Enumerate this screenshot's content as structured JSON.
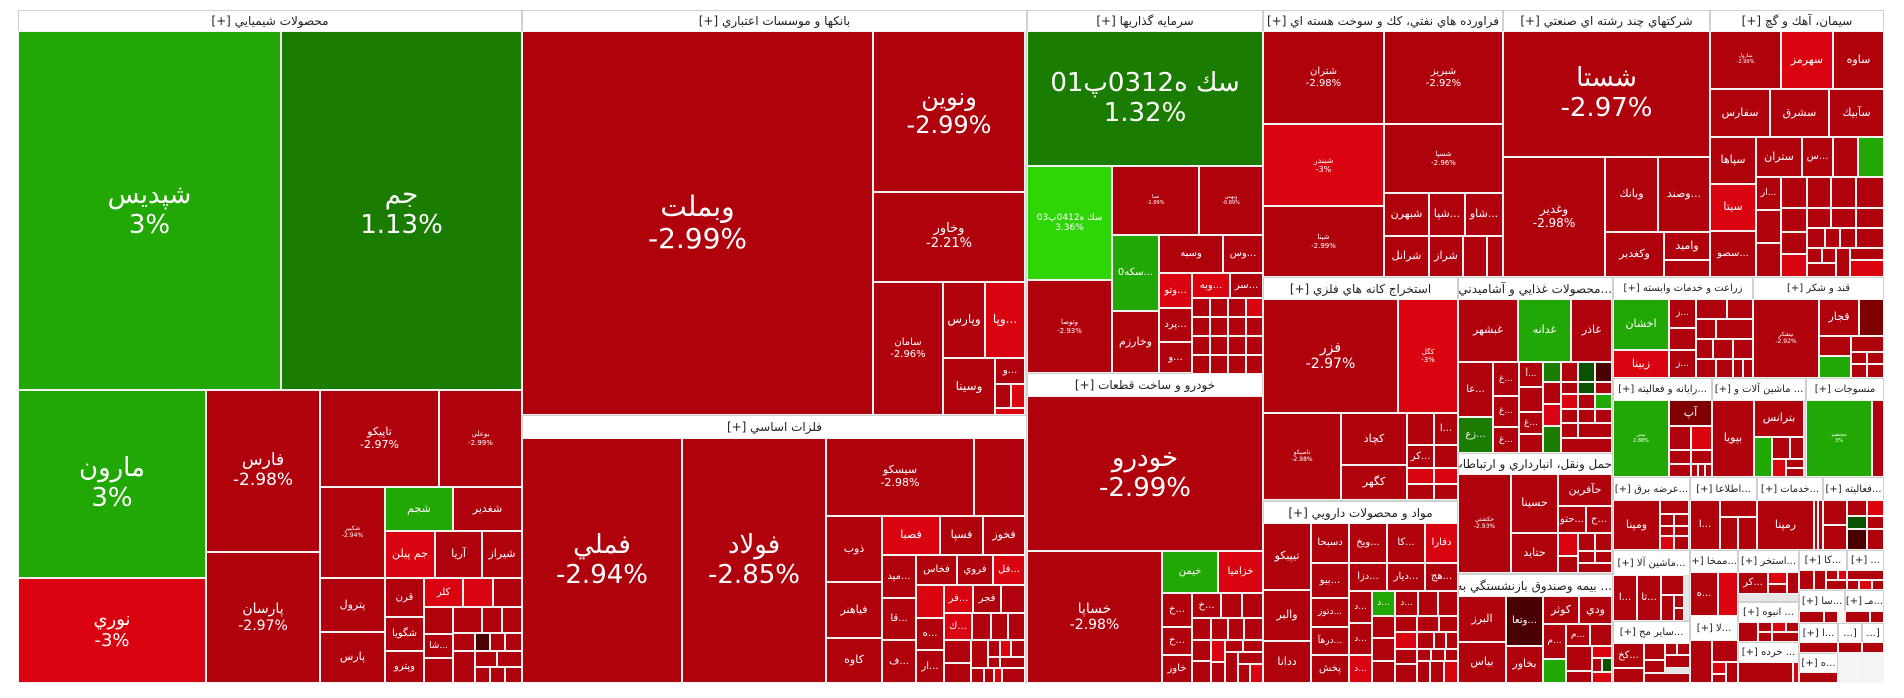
{
  "sectors": [
    {
      "title": "محصولات شيميايي [+]",
      "stocks": [
        {
          "symbol": "شپديس",
          "change": "3%",
          "color": "#22a805"
        },
        {
          "symbol": "جم",
          "change": "1.13%",
          "color": "#1a7d02"
        },
        {
          "symbol": "مارون",
          "change": "3%",
          "color": "#22a805"
        },
        {
          "symbol": "نوري",
          "change": "-3%",
          "color": "#d9040f"
        },
        {
          "symbol": "فارس",
          "change": "-2.98%",
          "color": "#b0020c"
        },
        {
          "symbol": "پارسان",
          "change": "-2.97%",
          "color": "#b0020c"
        },
        {
          "symbol": "تاپيكو",
          "change": "-2.97%",
          "color": "#b0020c"
        },
        {
          "symbol": "بوعلي",
          "change": "-2.99%",
          "color": "#b0020c"
        },
        {
          "symbol": "شكبير",
          "change": "-2.94%",
          "color": "#b0020c"
        },
        {
          "symbol": "شجم",
          "color": "#22a805"
        },
        {
          "symbol": "شغدير",
          "color": "#b0020c"
        },
        {
          "symbol": "جم پيلن",
          "color": "#d9040f"
        },
        {
          "symbol": "آريا",
          "color": "#b0020c"
        },
        {
          "symbol": "شيراز",
          "color": "#b0020c"
        },
        {
          "symbol": "پترول",
          "color": "#b0020c"
        },
        {
          "symbol": "پارس",
          "color": "#b0020c"
        },
        {
          "symbol": "قرن",
          "color": "#b0020c"
        },
        {
          "symbol": "شگويا",
          "color": "#b0020c"
        },
        {
          "symbol": "وپترو",
          "color": "#b0020c"
        },
        {
          "symbol": "كلر",
          "color": "#d9040f"
        },
        {
          "symbol": "...شا",
          "color": "#b0020c"
        }
      ]
    },
    {
      "title": "بانكها و موسسات اعتباري [+]",
      "stocks": [
        {
          "symbol": "وبملت",
          "change": "-2.99%",
          "color": "#b0020c"
        },
        {
          "symbol": "ونوين",
          "change": "-2.99%",
          "color": "#b0020c"
        },
        {
          "symbol": "وخاور",
          "change": "-2.21%",
          "color": "#b0020c"
        },
        {
          "symbol": "سامان",
          "change": "-2.96%",
          "color": "#b0020c"
        },
        {
          "symbol": "وپارس",
          "color": "#b0020c"
        },
        {
          "symbol": "...وپا",
          "color": "#d9040f"
        },
        {
          "symbol": "وسينا",
          "color": "#b0020c"
        },
        {
          "symbol": "...و",
          "color": "#b0020c"
        }
      ]
    },
    {
      "title": "فلزات اساسي [+]",
      "stocks": [
        {
          "symbol": "فملي",
          "change": "-2.94%",
          "color": "#b0020c"
        },
        {
          "symbol": "فولاد",
          "change": "-2.85%",
          "color": "#b0020c"
        },
        {
          "symbol": "سيسكو",
          "change": "-2.98%",
          "color": "#b0020c"
        },
        {
          "symbol": "ذوب",
          "color": "#b0020c"
        },
        {
          "symbol": "فياهنر",
          "color": "#b0020c"
        },
        {
          "symbol": "كاوه",
          "color": "#b0020c"
        },
        {
          "symbol": "فصبا",
          "color": "#d9040f"
        },
        {
          "symbol": "فسپا",
          "color": "#b0020c"
        },
        {
          "symbol": "فخوز",
          "color": "#b0020c"
        },
        {
          "symbol": "...ميد",
          "color": "#b0020c"
        },
        {
          "symbol": "فخاس",
          "color": "#b0020c"
        },
        {
          "symbol": "فروي",
          "color": "#b0020c"
        },
        {
          "symbol": "...فل",
          "color": "#d9040f"
        },
        {
          "symbol": "...قا",
          "color": "#b0020c"
        },
        {
          "symbol": "...ف",
          "color": "#b0020c"
        },
        {
          "symbol": "...فر",
          "color": "#d9040f"
        },
        {
          "symbol": "فجر",
          "color": "#b0020c"
        },
        {
          "symbol": "...ك",
          "color": "#d9040f"
        },
        {
          "symbol": "...ه",
          "color": "#b0020c"
        },
        {
          "symbol": "...ار",
          "color": "#b0020c"
        }
      ]
    },
    {
      "title": "سرمايه گذاريها [+]",
      "stocks": [
        {
          "symbol": "سك ه0312پ01",
          "change": "1.32%",
          "color": "#1a7d02"
        },
        {
          "symbol": "سك ه0412پ03",
          "change": "3.36%",
          "color": "#2ed605"
        },
        {
          "symbol": "وتوصا",
          "change": "-2.93%",
          "color": "#b0020c"
        },
        {
          "symbol": "صبا",
          "change": "-1.99%",
          "color": "#b0020c"
        },
        {
          "symbol": "وبهمن",
          "change": "-0.89%",
          "color": "#b0020c"
        },
        {
          "symbol": "...سكه0",
          "color": "#22a805"
        },
        {
          "symbol": "وسبه",
          "color": "#b0020c"
        },
        {
          "symbol": "...وس",
          "color": "#b0020c"
        },
        {
          "symbol": "...وتو",
          "color": "#d9040f"
        },
        {
          "symbol": "...وبه",
          "color": "#d9040f"
        },
        {
          "symbol": "...سر",
          "color": "#b0020c"
        },
        {
          "symbol": "وخارزم",
          "color": "#b0020c"
        },
        {
          "symbol": "...پرد",
          "color": "#b0020c"
        },
        {
          "symbol": "...و",
          "color": "#b0020c"
        }
      ]
    },
    {
      "title": "خودرو و ساخت قطعات [+]",
      "stocks": [
        {
          "symbol": "خودرو",
          "change": "-2.99%",
          "color": "#b0020c"
        },
        {
          "symbol": "خساپا",
          "change": "-2.98%",
          "color": "#b0020c"
        },
        {
          "symbol": "خيمن",
          "color": "#22a805"
        },
        {
          "symbol": "خزاميا",
          "color": "#d9040f"
        },
        {
          "symbol": "...خ",
          "color": "#b0020c"
        },
        {
          "symbol": "...خ",
          "color": "#b0020c"
        },
        {
          "symbol": "...خ",
          "color": "#b0020c"
        },
        {
          "symbol": "خاور",
          "color": "#b0020c"
        }
      ]
    },
    {
      "title": "فراورده هاي نفتي، كك و سوخت هسته اي [+]",
      "stocks": [
        {
          "symbol": "شتران",
          "change": "-2.98%",
          "color": "#b0020c"
        },
        {
          "symbol": "شبريز",
          "change": "-2.92%",
          "color": "#b0020c"
        },
        {
          "symbol": "شبندر",
          "change": "-3%",
          "color": "#d9040f"
        },
        {
          "symbol": "شپنا",
          "change": "-2.99%",
          "color": "#b0020c"
        },
        {
          "symbol": "شسپا",
          "change": "-2.96%",
          "color": "#b0020c"
        },
        {
          "symbol": "شبهرن",
          "color": "#b0020c"
        },
        {
          "symbol": "...شپا",
          "color": "#b0020c"
        },
        {
          "symbol": "...شاو",
          "color": "#b0020c"
        },
        {
          "symbol": "شرانل",
          "color": "#b0020c"
        },
        {
          "symbol": "شراز",
          "color": "#b0020c"
        }
      ]
    },
    {
      "title": "استخراج كانه هاي فلزي [+]",
      "stocks": [
        {
          "symbol": "فزر",
          "change": "-2.97%",
          "color": "#b0020c"
        },
        {
          "symbol": "كگل",
          "change": "-3%",
          "color": "#d9040f"
        },
        {
          "symbol": "تاصيكو",
          "change": "-2.98%",
          "color": "#b0020c"
        },
        {
          "symbol": "كچاد",
          "color": "#b0020c"
        },
        {
          "symbol": "كگهر",
          "color": "#b0020c"
        },
        {
          "symbol": "...كر",
          "color": "#b0020c"
        },
        {
          "symbol": "...ا",
          "color": "#b0020c"
        }
      ]
    },
    {
      "title": "مواد و محصولات دارويي [+]",
      "stocks": [
        {
          "symbol": "تيپيكو",
          "color": "#b0020c"
        },
        {
          "symbol": "والبر",
          "color": "#b0020c"
        },
        {
          "symbol": "ددانا",
          "color": "#b0020c"
        },
        {
          "symbol": "دسبحا",
          "color": "#b0020c"
        },
        {
          "symbol": "...بيو",
          "color": "#b0020c"
        },
        {
          "symbol": "...دتوز",
          "color": "#b0020c"
        },
        {
          "symbol": "...درهآ",
          "color": "#b0020c"
        },
        {
          "symbol": "پخش",
          "color": "#b0020c"
        },
        {
          "symbol": "...ويخ",
          "color": "#b0020c"
        },
        {
          "symbol": "...كا",
          "color": "#b0020c"
        },
        {
          "symbol": "دفارا",
          "color": "#d9040f"
        },
        {
          "symbol": "...دزا",
          "color": "#b0020c"
        },
        {
          "symbol": "...ديار",
          "color": "#b0020c"
        },
        {
          "symbol": "...هج",
          "color": "#b0020c"
        },
        {
          "symbol": "...د",
          "color": "#b0020c"
        },
        {
          "symbol": "...د",
          "color": "#22a805"
        },
        {
          "symbol": "...د",
          "color": "#b0020c"
        },
        {
          "symbol": "...د",
          "color": "#b0020c"
        },
        {
          "symbol": "...د",
          "color": "#d9040f"
        }
      ]
    },
    {
      "title": "شركتهاي چند رشته اي صنعتي [+]",
      "stocks": [
        {
          "symbol": "شستا",
          "change": "-2.97%",
          "color": "#b0020c"
        },
        {
          "symbol": "وغدير",
          "change": "-2.98%",
          "color": "#b0020c"
        },
        {
          "symbol": "وبانك",
          "color": "#b0020c"
        },
        {
          "symbol": "...وصند",
          "color": "#b0020c"
        },
        {
          "symbol": "وكغدير",
          "color": "#b0020c"
        },
        {
          "symbol": "واميد",
          "color": "#b0020c"
        }
      ]
    },
    {
      "title": "سيمان، آهك و گچ [+]",
      "stocks": [
        {
          "symbol": "سارول",
          "change": "-2.99%",
          "color": "#b0020c"
        },
        {
          "symbol": "سهرمز",
          "color": "#d9040f"
        },
        {
          "symbol": "ساوه",
          "color": "#b0020c"
        },
        {
          "symbol": "سفارس",
          "color": "#b0020c"
        },
        {
          "symbol": "سشرق",
          "color": "#b0020c"
        },
        {
          "symbol": "سآبيك",
          "color": "#b0020c"
        },
        {
          "symbol": "سپاها",
          "color": "#b0020c"
        },
        {
          "symbol": "ستران",
          "color": "#b0020c"
        },
        {
          "symbol": "...س",
          "color": "#b0020c"
        },
        {
          "symbol": "سيتا",
          "color": "#d9040f"
        },
        {
          "symbol": "...سصو",
          "color": "#b0020c"
        },
        {
          "symbol": "...ار",
          "color": "#b0020c"
        }
      ]
    },
    {
      "title": "...محصولات غذايي و آشاميدني [+]",
      "stocks": [
        {
          "symbol": "غبشهر",
          "color": "#b0020c"
        },
        {
          "symbol": "غدانه",
          "color": "#22a805"
        },
        {
          "symbol": "غاذر",
          "color": "#b0020c"
        },
        {
          "symbol": "...عا",
          "color": "#b0020c"
        },
        {
          "symbol": "...غ",
          "color": "#b0020c"
        },
        {
          "symbol": "...غ",
          "color": "#b0020c"
        },
        {
          "symbol": "...زع",
          "color": "#1a7d02"
        },
        {
          "symbol": "...غ",
          "color": "#b0020c"
        },
        {
          "symbol": "...آ",
          "color": "#b0020c"
        },
        {
          "symbol": "...غ",
          "color": "#b0020c"
        }
      ]
    },
    {
      "title": "حمل ونقل، انبارداري و ارتباطات [+]",
      "stocks": [
        {
          "symbol": "حكشتي",
          "change": "-2.93%",
          "color": "#b0020c"
        },
        {
          "symbol": "حسينا",
          "color": "#b0020c"
        },
        {
          "symbol": "حآفرين",
          "color": "#b0020c"
        },
        {
          "symbol": "...حتو",
          "color": "#b0020c"
        },
        {
          "symbol": "...ح",
          "color": "#b0020c"
        },
        {
          "symbol": "حتايد",
          "color": "#b0020c"
        }
      ]
    },
    {
      "title": "... بيمه وصندوق بازنشستگي به [+]",
      "stocks": [
        {
          "symbol": "البرز",
          "color": "#b0020c"
        },
        {
          "symbol": "...وتعا",
          "color": "#4a0000"
        },
        {
          "symbol": "كوثر",
          "color": "#b0020c"
        },
        {
          "symbol": "ودي",
          "color": "#b0020c"
        },
        {
          "symbol": "بياس",
          "color": "#b0020c"
        },
        {
          "symbol": "بخاور",
          "color": "#b0020c"
        },
        {
          "symbol": "...م",
          "color": "#b0020c"
        },
        {
          "symbol": "...م",
          "color": "#b0020c"
        }
      ]
    },
    {
      "title": "زراعت و خدمات وابسته [+]",
      "stocks": [
        {
          "symbol": "اخشان",
          "color": "#22a805"
        },
        {
          "symbol": "زبينا",
          "color": "#d9040f"
        },
        {
          "symbol": "...ز",
          "color": "#b0020c"
        },
        {
          "symbol": "...ز",
          "color": "#b0020c"
        }
      ]
    },
    {
      "title": "قند و شكر [+]",
      "stocks": [
        {
          "symbol": "نيشكر",
          "change": "-2.92%",
          "color": "#b0020c"
        },
        {
          "symbol": "قجار",
          "color": "#b0020c"
        }
      ]
    },
    {
      "title": "...رايانه و فعاليته [+]",
      "stocks": [
        {
          "symbol": "نيس",
          "change": "2.88%",
          "color": "#22a805"
        },
        {
          "symbol": "آپ",
          "color": "#800000"
        }
      ]
    },
    {
      "title": "... ماشين آلات و [+]",
      "stocks": [
        {
          "symbol": "بپويا",
          "color": "#b0020c"
        },
        {
          "symbol": "بترانس",
          "color": "#b0020c"
        }
      ]
    },
    {
      "title": "منسوجات [+]",
      "stocks": [
        {
          "symbol": "مختصم",
          "change": "3%",
          "color": "#22a805"
        }
      ]
    },
    {
      "title": "...عرضه برق [+]",
      "stocks": [
        {
          "symbol": "ومپنا",
          "color": "#b0020c"
        }
      ]
    },
    {
      "title": "...اطلاعا [+]",
      "stocks": [
        {
          "symbol": "...ا",
          "color": "#b0020c"
        }
      ]
    },
    {
      "title": "...خدمات [+]",
      "stocks": [
        {
          "symbol": "رمپنا",
          "color": "#b0020c"
        }
      ]
    },
    {
      "title": "...فعاليته [+]",
      "stocks": []
    },
    {
      "title": "...ماشين آلا [+]",
      "stocks": [
        {
          "symbol": "...ا",
          "color": "#b0020c"
        },
        {
          "symbol": "...تا",
          "color": "#b0020c"
        }
      ]
    },
    {
      "title": "...ساير مح [+]",
      "stocks": [
        {
          "symbol": "...كخ",
          "color": "#b0020c"
        }
      ]
    },
    {
      "title": "...ممخا [+]",
      "stocks": [
        {
          "symbol": "...ه",
          "color": "#b0020c"
        }
      ]
    },
    {
      "title": "...لا [+]",
      "stocks": []
    },
    {
      "title": "...استخر [+]",
      "stocks": [
        {
          "symbol": "...كر",
          "color": "#b0020c"
        }
      ]
    },
    {
      "title": "... انبوه [+]",
      "stocks": []
    },
    {
      "title": "... خرده [+]",
      "stocks": []
    },
    {
      "title": "...كا [+]",
      "stocks": []
    },
    {
      "title": "... [+]",
      "stocks": []
    },
    {
      "title": "...سا [+]",
      "stocks": []
    },
    {
      "title": "...مـ [+]",
      "stocks": []
    },
    {
      "title": "...ا [+]",
      "stocks": []
    },
    {
      "title": "[...",
      "stocks": []
    },
    {
      "title": "[...",
      "stocks": []
    },
    {
      "title": "...ه [+]",
      "stocks": []
    }
  ]
}
